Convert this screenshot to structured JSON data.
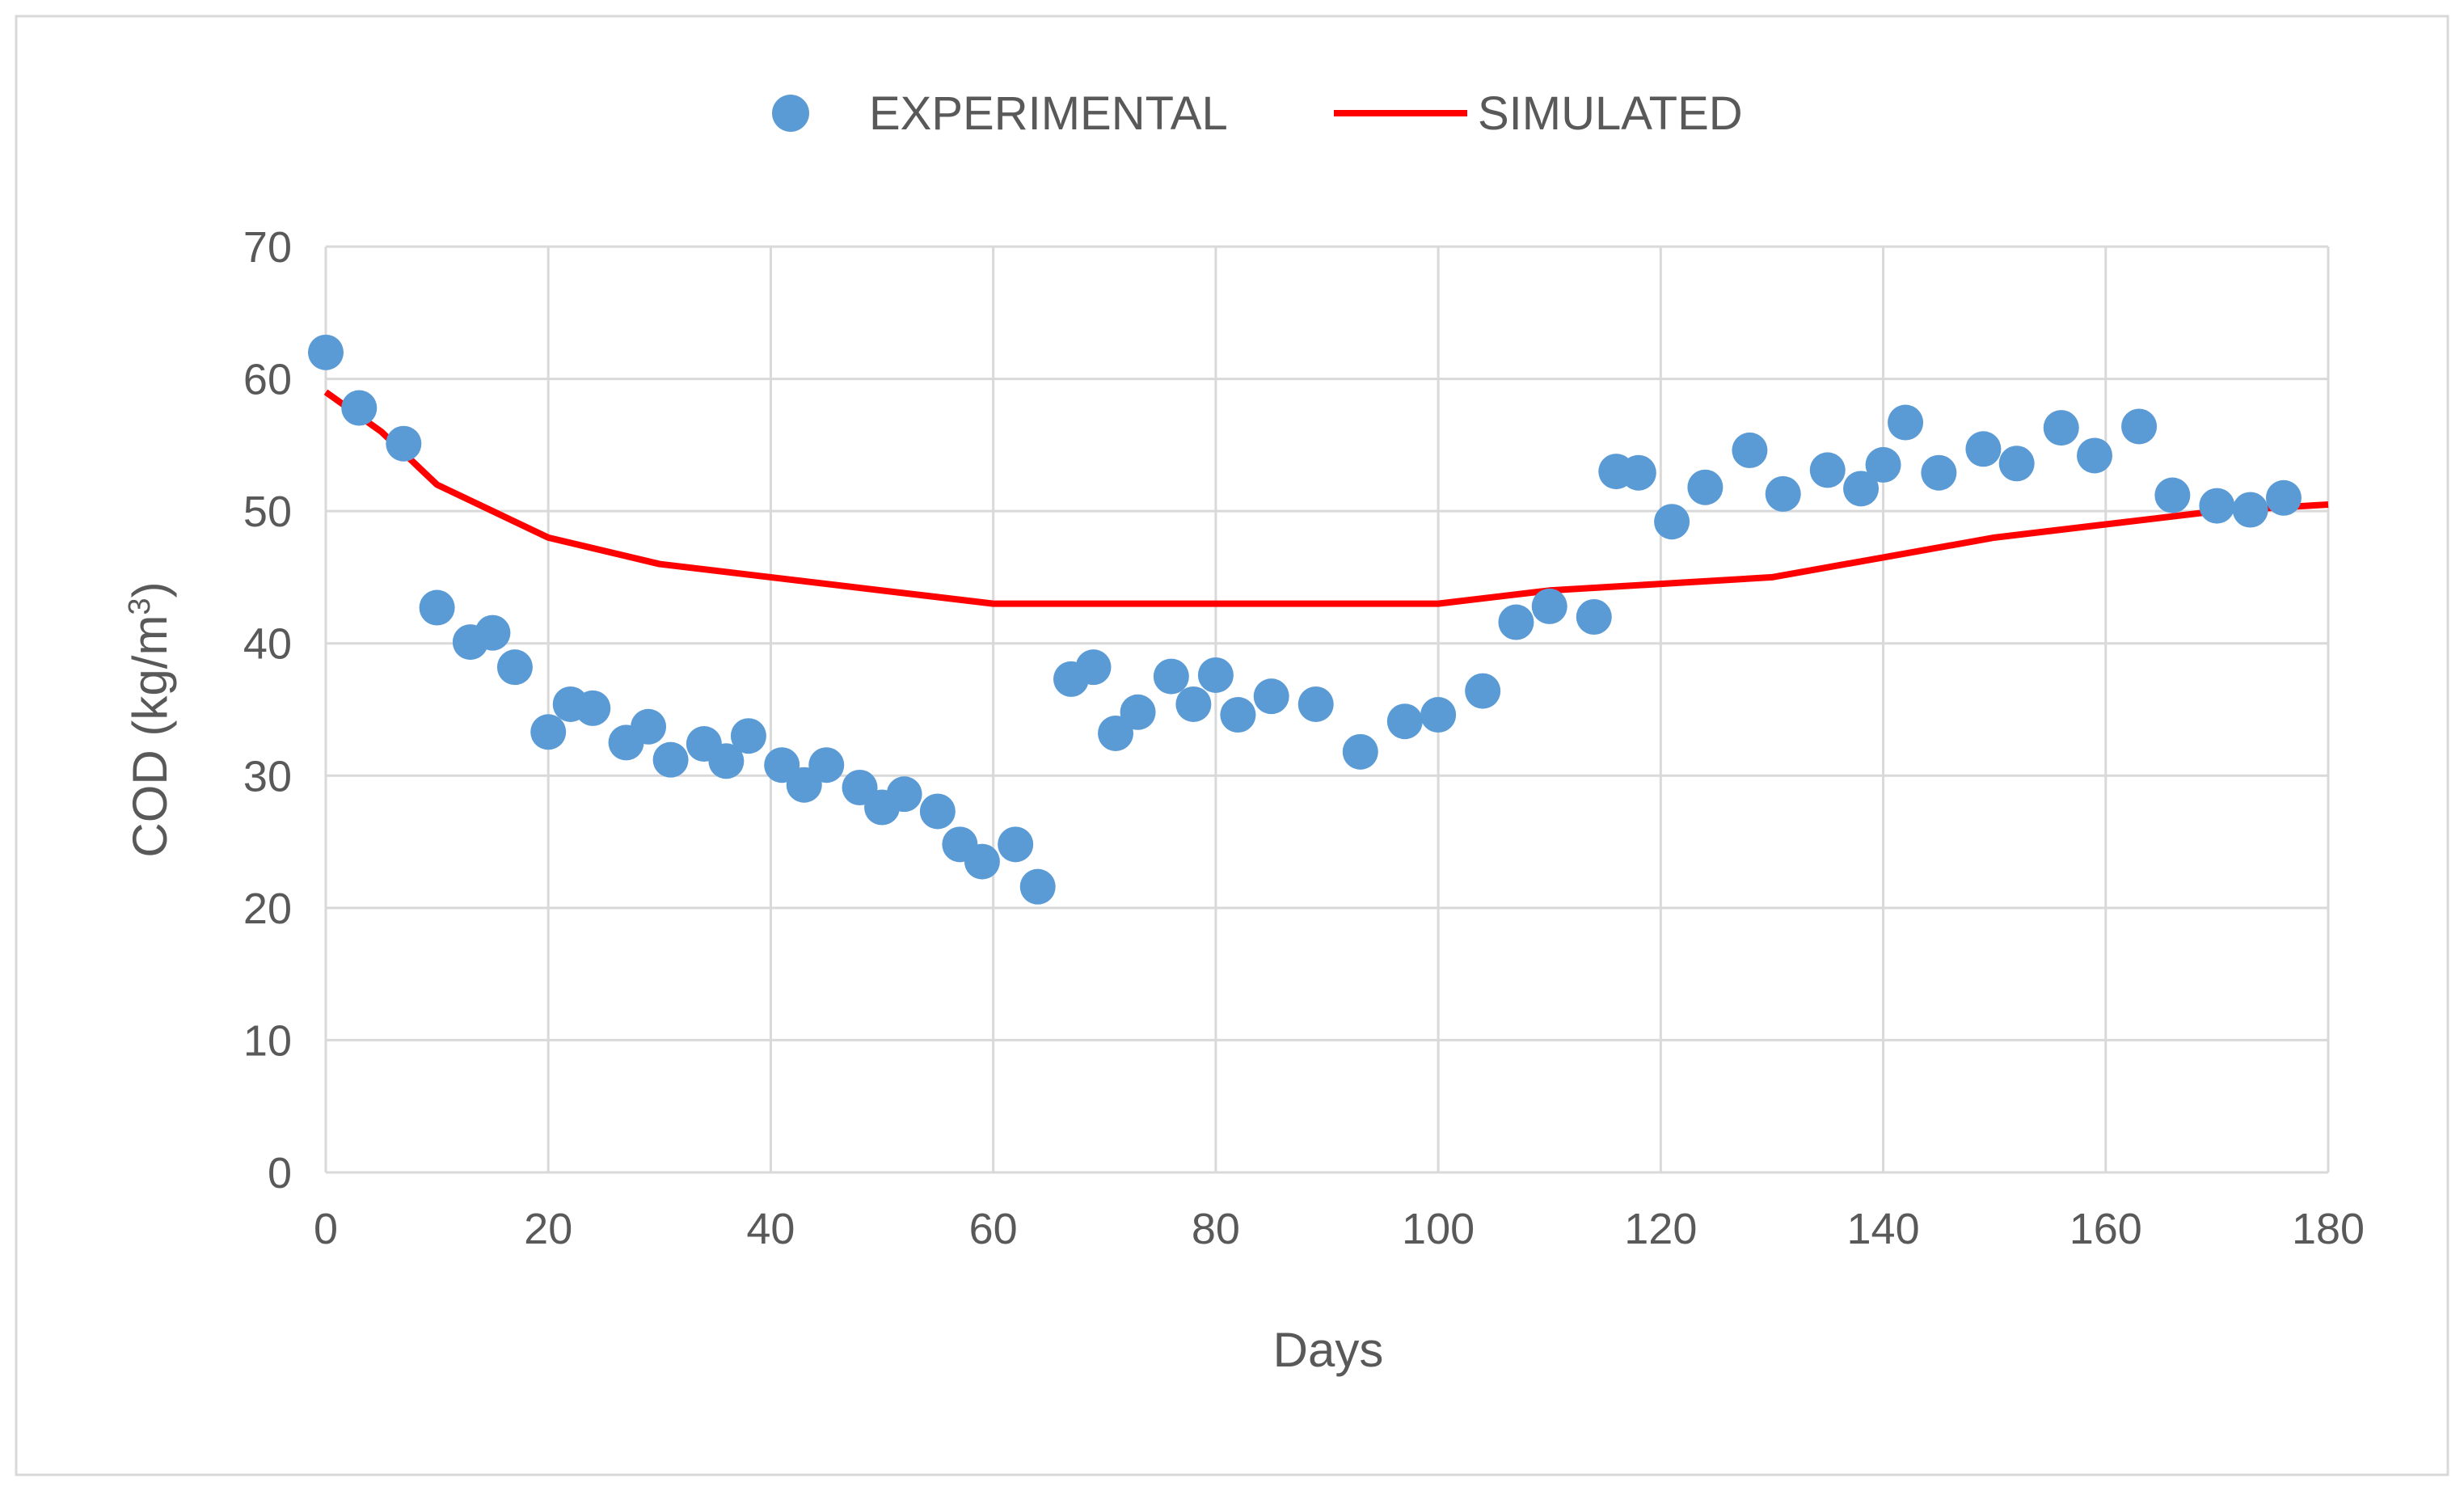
{
  "chart_data": {
    "type": "scatter",
    "title": "",
    "xlabel": "Days",
    "ylabel_main": "COD (kg/m",
    "ylabel_sup": "3",
    "ylabel_close": ")",
    "xlim": [
      0,
      180
    ],
    "ylim": [
      0,
      70
    ],
    "xticks": [
      0,
      20,
      40,
      60,
      80,
      100,
      120,
      140,
      160,
      180
    ],
    "yticks": [
      0,
      10,
      20,
      30,
      40,
      50,
      60,
      70
    ],
    "grid": true,
    "legend_position": "top-center",
    "series": [
      {
        "name": "EXPERIMENTAL",
        "kind": "markers",
        "color": "#5B9BD5",
        "x": [
          0,
          3,
          7,
          10,
          13,
          15,
          17,
          20,
          22,
          24,
          27,
          29,
          31,
          34,
          36,
          38,
          41,
          43,
          45,
          48,
          50,
          52,
          55,
          57,
          59,
          62,
          64,
          67,
          69,
          71,
          73,
          76,
          78,
          80,
          82,
          85,
          89,
          93,
          97,
          100,
          104,
          107,
          110,
          114,
          116,
          118,
          121,
          124,
          128,
          131,
          135,
          138,
          140,
          142,
          145,
          149,
          152,
          156,
          159,
          163,
          166,
          170,
          173,
          176
        ],
        "y": [
          62,
          57.8,
          55.1,
          42.7,
          40.1,
          40.8,
          38.2,
          33.3,
          35.4,
          35.1,
          32.5,
          33.7,
          31.2,
          32.4,
          31.1,
          33.0,
          30.8,
          29.3,
          30.8,
          29.1,
          27.6,
          28.6,
          27.3,
          24.8,
          23.5,
          24.8,
          21.6,
          37.3,
          38.2,
          33.2,
          34.8,
          37.5,
          35.4,
          37.6,
          34.6,
          36.0,
          35.4,
          31.8,
          34.1,
          34.6,
          36.4,
          41.6,
          42.8,
          42.0,
          53.0,
          52.9,
          49.2,
          51.8,
          54.6,
          51.3,
          53.1,
          51.7,
          53.5,
          56.7,
          52.9,
          54.7,
          53.6,
          56.3,
          54.2,
          56.4,
          51.2,
          50.4,
          50.1,
          51.0
        ]
      },
      {
        "name": "SIMULATED",
        "kind": "line",
        "color": "#FF0000",
        "x": [
          0,
          5,
          10,
          15,
          20,
          30,
          40,
          50,
          60,
          70,
          80,
          90,
          100,
          105,
          110,
          120,
          130,
          140,
          150,
          160,
          170,
          180
        ],
        "y": [
          59,
          56,
          52,
          50,
          48,
          46,
          45,
          44,
          43,
          43,
          43,
          43,
          43,
          43.5,
          44,
          44.5,
          45,
          46.5,
          48,
          49,
          50,
          50.5
        ]
      }
    ]
  }
}
